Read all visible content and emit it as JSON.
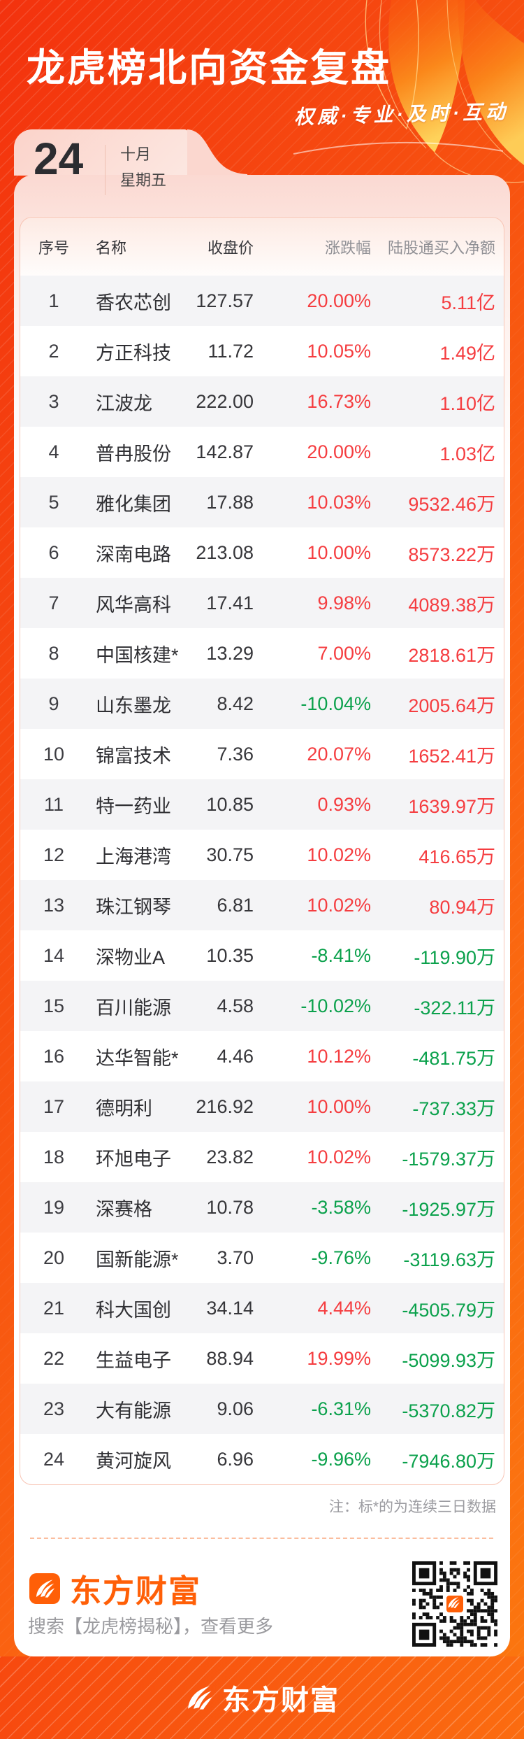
{
  "page": {
    "title": "龙虎榜北向资金复盘",
    "slogan": "权威·专业·及时·互动",
    "date": {
      "day": "24",
      "month": "十月",
      "weekday": "星期五"
    }
  },
  "chart_data": {
    "type": "table",
    "title": "龙虎榜北向资金复盘",
    "columns": [
      "序号",
      "名称",
      "收盘价",
      "涨跌幅",
      "陆股通买入净额"
    ],
    "rows": [
      {
        "no": "1",
        "name": "香农芯创",
        "close": "127.57",
        "change": "20.00%",
        "change_dir": "up",
        "net": "5.11亿",
        "net_dir": "up"
      },
      {
        "no": "2",
        "name": "方正科技",
        "close": "11.72",
        "change": "10.05%",
        "change_dir": "up",
        "net": "1.49亿",
        "net_dir": "up"
      },
      {
        "no": "3",
        "name": "江波龙",
        "close": "222.00",
        "change": "16.73%",
        "change_dir": "up",
        "net": "1.10亿",
        "net_dir": "up"
      },
      {
        "no": "4",
        "name": "普冉股份",
        "close": "142.87",
        "change": "20.00%",
        "change_dir": "up",
        "net": "1.03亿",
        "net_dir": "up"
      },
      {
        "no": "5",
        "name": "雅化集团",
        "close": "17.88",
        "change": "10.03%",
        "change_dir": "up",
        "net": "9532.46万",
        "net_dir": "up"
      },
      {
        "no": "6",
        "name": "深南电路",
        "close": "213.08",
        "change": "10.00%",
        "change_dir": "up",
        "net": "8573.22万",
        "net_dir": "up"
      },
      {
        "no": "7",
        "name": "风华高科",
        "close": "17.41",
        "change": "9.98%",
        "change_dir": "up",
        "net": "4089.38万",
        "net_dir": "up"
      },
      {
        "no": "8",
        "name": "中国核建*",
        "close": "13.29",
        "change": "7.00%",
        "change_dir": "up",
        "net": "2818.61万",
        "net_dir": "up"
      },
      {
        "no": "9",
        "name": "山东墨龙",
        "close": "8.42",
        "change": "-10.04%",
        "change_dir": "down",
        "net": "2005.64万",
        "net_dir": "up"
      },
      {
        "no": "10",
        "name": "锦富技术",
        "close": "7.36",
        "change": "20.07%",
        "change_dir": "up",
        "net": "1652.41万",
        "net_dir": "up"
      },
      {
        "no": "11",
        "name": "特一药业",
        "close": "10.85",
        "change": "0.93%",
        "change_dir": "up",
        "net": "1639.97万",
        "net_dir": "up"
      },
      {
        "no": "12",
        "name": "上海港湾",
        "close": "30.75",
        "change": "10.02%",
        "change_dir": "up",
        "net": "416.65万",
        "net_dir": "up"
      },
      {
        "no": "13",
        "name": "珠江钢琴",
        "close": "6.81",
        "change": "10.02%",
        "change_dir": "up",
        "net": "80.94万",
        "net_dir": "up"
      },
      {
        "no": "14",
        "name": "深物业A",
        "close": "10.35",
        "change": "-8.41%",
        "change_dir": "down",
        "net": "-119.90万",
        "net_dir": "down"
      },
      {
        "no": "15",
        "name": "百川能源",
        "close": "4.58",
        "change": "-10.02%",
        "change_dir": "down",
        "net": "-322.11万",
        "net_dir": "down"
      },
      {
        "no": "16",
        "name": "达华智能*",
        "close": "4.46",
        "change": "10.12%",
        "change_dir": "up",
        "net": "-481.75万",
        "net_dir": "down"
      },
      {
        "no": "17",
        "name": "德明利",
        "close": "216.92",
        "change": "10.00%",
        "change_dir": "up",
        "net": "-737.33万",
        "net_dir": "down"
      },
      {
        "no": "18",
        "name": "环旭电子",
        "close": "23.82",
        "change": "10.02%",
        "change_dir": "up",
        "net": "-1579.37万",
        "net_dir": "down"
      },
      {
        "no": "19",
        "name": "深赛格",
        "close": "10.78",
        "change": "-3.58%",
        "change_dir": "down",
        "net": "-1925.97万",
        "net_dir": "down"
      },
      {
        "no": "20",
        "name": "国新能源*",
        "close": "3.70",
        "change": "-9.76%",
        "change_dir": "down",
        "net": "-3119.63万",
        "net_dir": "down"
      },
      {
        "no": "21",
        "name": "科大国创",
        "close": "34.14",
        "change": "4.44%",
        "change_dir": "up",
        "net": "-4505.79万",
        "net_dir": "down"
      },
      {
        "no": "22",
        "name": "生益电子",
        "close": "88.94",
        "change": "19.99%",
        "change_dir": "up",
        "net": "-5099.93万",
        "net_dir": "down"
      },
      {
        "no": "23",
        "name": "大有能源",
        "close": "9.06",
        "change": "-6.31%",
        "change_dir": "down",
        "net": "-5370.82万",
        "net_dir": "down"
      },
      {
        "no": "24",
        "name": "黄河旋风",
        "close": "6.96",
        "change": "-9.96%",
        "change_dir": "down",
        "net": "-7946.80万",
        "net_dir": "down"
      }
    ]
  },
  "note": "注：标*的为连续三日数据",
  "watermark": "东方财富",
  "footer": {
    "brand": "东方财富",
    "search_tip": "搜索【龙虎榜揭秘】，查看更多",
    "bottom_brand": "东方财富"
  },
  "colors": {
    "up": "#f53d40",
    "down": "#0ba14c",
    "brand": "#ff5f07",
    "background": "#f75210"
  }
}
